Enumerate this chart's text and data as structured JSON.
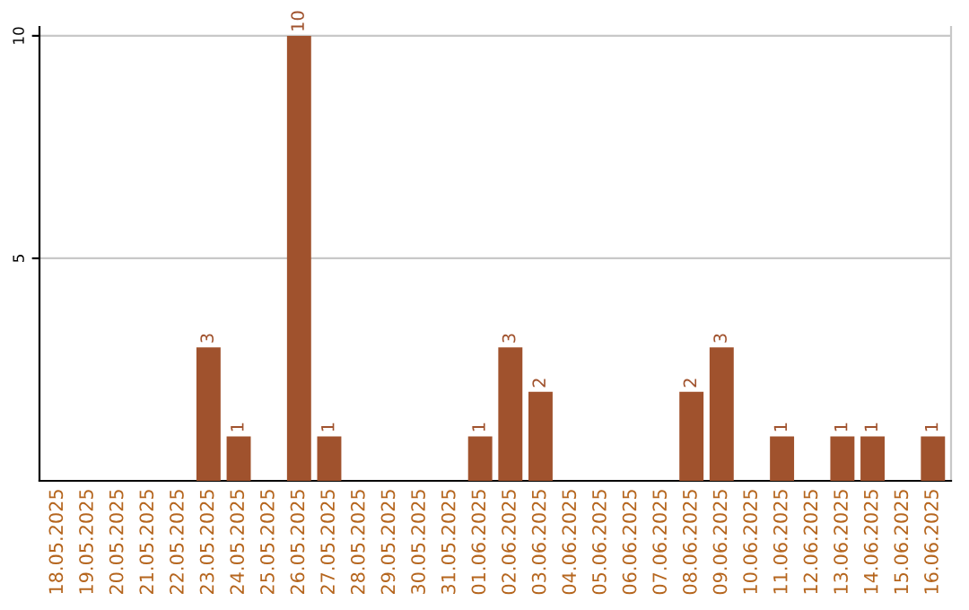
{
  "chart_data": {
    "type": "bar",
    "categories": [
      "18.05.2025",
      "19.05.2025",
      "20.05.2025",
      "21.05.2025",
      "22.05.2025",
      "23.05.2025",
      "24.05.2025",
      "25.05.2025",
      "26.05.2025",
      "27.05.2025",
      "28.05.2025",
      "29.05.2025",
      "30.05.2025",
      "31.05.2025",
      "01.06.2025",
      "02.06.2025",
      "03.06.2025",
      "04.06.2025",
      "05.06.2025",
      "06.06.2025",
      "07.06.2025",
      "08.06.2025",
      "09.06.2025",
      "10.06.2025",
      "11.06.2025",
      "12.06.2025",
      "13.06.2025",
      "14.06.2025",
      "15.06.2025",
      "16.06.2025"
    ],
    "values": [
      0,
      0,
      0,
      0,
      0,
      3,
      1,
      0,
      10,
      1,
      0,
      0,
      0,
      0,
      1,
      3,
      2,
      0,
      0,
      0,
      0,
      2,
      3,
      0,
      1,
      0,
      1,
      1,
      0,
      1
    ],
    "value_labels": [
      null,
      null,
      null,
      null,
      null,
      "3",
      "1",
      null,
      "10",
      "1",
      null,
      null,
      null,
      null,
      "1",
      "3",
      "2",
      null,
      null,
      null,
      null,
      "2",
      "3",
      null,
      "1",
      null,
      "1",
      "1",
      null,
      "1"
    ],
    "color": "#a0522d",
    "ylim": [
      0,
      10.2
    ],
    "yticks": [
      5,
      10
    ],
    "grid": "y"
  }
}
